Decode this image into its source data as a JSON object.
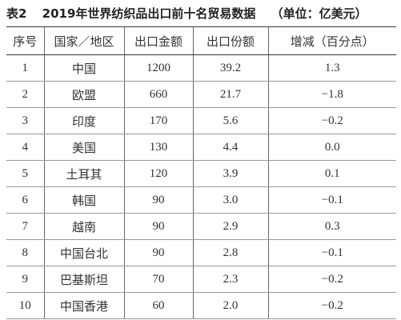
{
  "header": {
    "label": "表2",
    "title": "2019年世界纺织品出口前十名贸易数据",
    "unit": "（单位：亿美元）"
  },
  "table": {
    "columns": [
      "序号",
      "国家／地区",
      "出口金额",
      "出口份额",
      "增减（百分点）"
    ],
    "rows": [
      [
        "1",
        "中国",
        "1200",
        "39.2",
        "1.3"
      ],
      [
        "2",
        "欧盟",
        "660",
        "21.7",
        "−1.8"
      ],
      [
        "3",
        "印度",
        "170",
        "5.6",
        "−0.2"
      ],
      [
        "4",
        "美国",
        "130",
        "4.4",
        "0.0"
      ],
      [
        "5",
        "土耳其",
        "120",
        "3.9",
        "0.1"
      ],
      [
        "6",
        "韩国",
        "90",
        "3.0",
        "−0.1"
      ],
      [
        "7",
        "越南",
        "90",
        "2.9",
        "0.3"
      ],
      [
        "8",
        "中国台北",
        "90",
        "2.8",
        "−0.1"
      ],
      [
        "9",
        "巴基斯坦",
        "70",
        "2.3",
        "−0.2"
      ],
      [
        "10",
        "中国香港",
        "60",
        "2.0",
        "−0.2"
      ]
    ]
  }
}
